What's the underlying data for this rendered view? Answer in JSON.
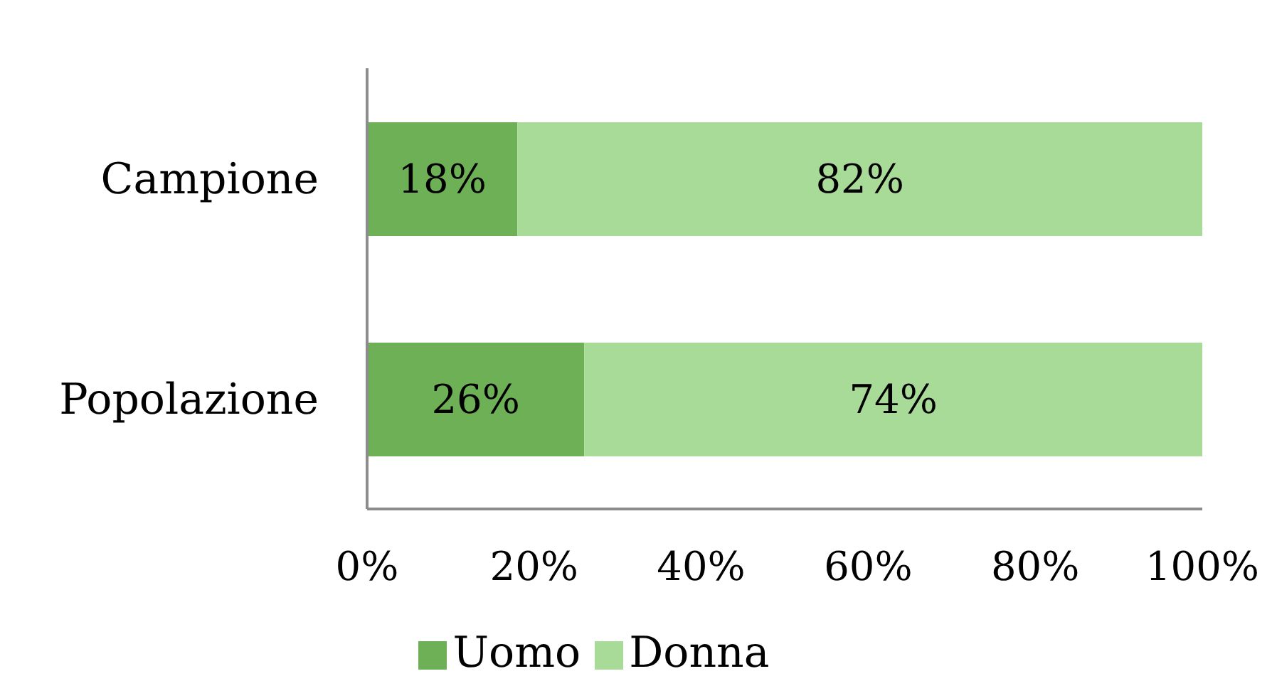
{
  "chart_data": {
    "type": "bar",
    "orientation": "horizontal",
    "stacked": true,
    "categories": [
      "Campione",
      "Popolazione"
    ],
    "series": [
      {
        "name": "Uomo",
        "color": "#6db056",
        "values": [
          18,
          26
        ],
        "value_labels": [
          "18%",
          "26%"
        ]
      },
      {
        "name": "Donna",
        "color": "#a8da98",
        "values": [
          82,
          74
        ],
        "value_labels": [
          "82%",
          "74%"
        ]
      }
    ],
    "xlim": [
      0,
      100
    ],
    "xticks": [
      {
        "value": 0,
        "label": "0%"
      },
      {
        "value": 20,
        "label": "20%"
      },
      {
        "value": 40,
        "label": "40%"
      },
      {
        "value": 60,
        "label": "60%"
      },
      {
        "value": 80,
        "label": "80%"
      },
      {
        "value": 100,
        "label": "100%"
      }
    ],
    "legend": "bottom"
  }
}
